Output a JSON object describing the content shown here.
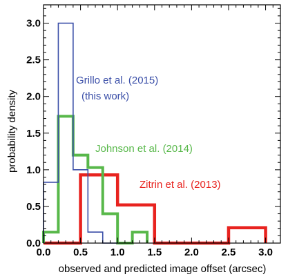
{
  "chart_data": {
    "type": "histogram",
    "xlabel": "observed and predicted image offset (arcsec)",
    "ylabel": "probability density",
    "xlim": [
      0,
      3.2
    ],
    "ylim": [
      0,
      3.25
    ],
    "xticks": [
      "0.0",
      "0.5",
      "1.0",
      "1.5",
      "2.0",
      "2.5",
      "3.0"
    ],
    "yticks": [
      "0.0",
      "0.5",
      "1.0",
      "1.5",
      "2.0",
      "2.5",
      "3.0"
    ],
    "xtick_values": [
      0,
      0.5,
      1.0,
      1.5,
      2.0,
      2.5,
      3.0
    ],
    "ytick_values": [
      0,
      0.5,
      1.0,
      1.5,
      2.0,
      2.5,
      3.0
    ],
    "grid": false,
    "series": [
      {
        "name": "Grillo et al. (2015) (this work)",
        "color": "#3b4fa8",
        "bin_edges": [
          0,
          0.2,
          0.4,
          0.6,
          0.8,
          1.0
        ],
        "values": [
          0.83,
          3.0,
          1.0,
          0.15,
          0.0
        ]
      },
      {
        "name": "Johnson et al. (2014)",
        "color": "#58b84a",
        "bin_edges": [
          0,
          0.2,
          0.4,
          0.6,
          0.8,
          1.0,
          1.2,
          1.4
        ],
        "values": [
          0.15,
          1.73,
          1.2,
          1.03,
          0.4,
          0.0,
          0.15
        ]
      },
      {
        "name": "Zitrin et al. (2013)",
        "color": "#e8231f",
        "bin_edges": [
          0,
          0.5,
          1.0,
          1.5,
          2.0,
          2.5,
          3.0
        ],
        "values": [
          0.0,
          0.93,
          0.52,
          0.0,
          0.0,
          0.21
        ]
      }
    ],
    "annotations": [
      {
        "text": "Grillo et al. (2015)",
        "series": 0
      },
      {
        "text": "(this work)",
        "series": 0
      },
      {
        "text": "Johnson et al. (2014)",
        "series": 1
      },
      {
        "text": "Zitrin et al. (2013)",
        "series": 2
      }
    ]
  }
}
